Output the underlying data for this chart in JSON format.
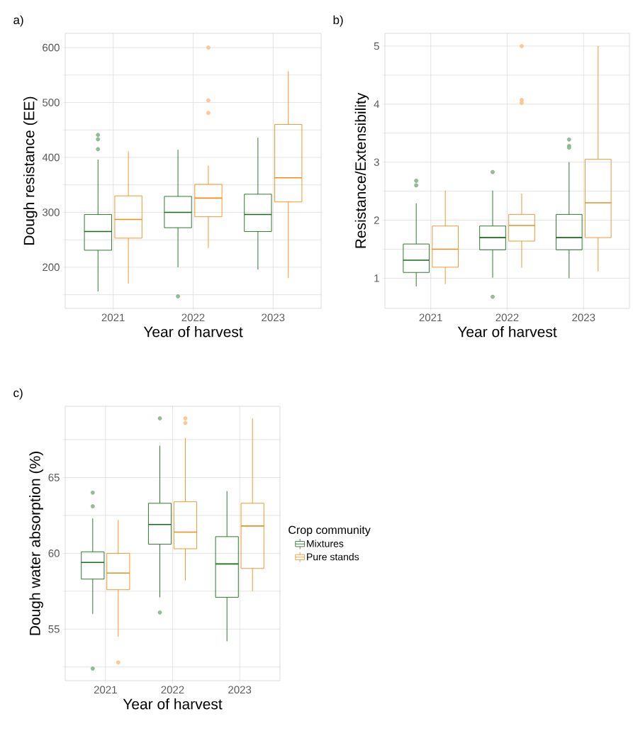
{
  "chart_data": [
    {
      "type": "box",
      "title": "a)",
      "xlabel": "Year of harvest",
      "ylabel": "Dough resistance (EE)",
      "categories": [
        "2021",
        "2022",
        "2023"
      ],
      "ylim": [
        125,
        626
      ],
      "yticks": [
        {
          "value": 150,
          "label": null
        },
        200,
        {
          "value": 250,
          "label": null
        },
        300,
        {
          "value": 350,
          "label": null
        },
        400,
        {
          "value": 450,
          "label": null
        },
        500,
        {
          "value": 550,
          "label": null
        },
        600
      ],
      "grid": true,
      "series": [
        {
          "color": "#176b1b",
          "boxes": [
            {
              "low": 156,
              "q1": 231,
              "median": 265,
              "q3": 296,
              "high": 396,
              "outliers": [
                441,
                433,
                415
              ]
            },
            {
              "low": 200,
              "q1": 272,
              "median": 300,
              "q3": 329,
              "high": 414,
              "outliers": [
                147
              ]
            },
            {
              "low": 196,
              "q1": 265,
              "median": 296,
              "q3": 333,
              "high": 436
            }
          ]
        },
        {
          "color": "#f08c1a",
          "boxes": [
            {
              "low": 170,
              "q1": 253,
              "median": 287,
              "q3": 330,
              "high": 411
            },
            {
              "low": 235,
              "q1": 292,
              "median": 326,
              "q3": 351,
              "high": 385,
              "outliers": [
                600,
                504,
                481
              ]
            },
            {
              "low": 180,
              "q1": 319,
              "median": 363,
              "q3": 460,
              "high": 557
            }
          ]
        }
      ]
    },
    {
      "type": "box",
      "title": "b)",
      "xlabel": "Year of harvest",
      "ylabel": "Resistance/Extensibility",
      "categories": [
        "2021",
        "2022",
        "2023"
      ],
      "ylim": [
        0.48,
        5.22
      ],
      "yticks": [
        1,
        {
          "value": 1.5,
          "label": null
        },
        2,
        {
          "value": 2.5,
          "label": null
        },
        3,
        {
          "value": 3.5,
          "label": null
        },
        4,
        {
          "value": 4.5,
          "label": null
        },
        5
      ],
      "grid": true,
      "series": [
        {
          "color": "#176b1b",
          "boxes": [
            {
              "low": 0.86,
              "q1": 1.1,
              "median": 1.31,
              "q3": 1.59,
              "high": 2.29,
              "outliers": [
                2.68,
                2.6
              ]
            },
            {
              "low": 1.01,
              "q1": 1.49,
              "median": 1.7,
              "q3": 1.9,
              "high": 2.51,
              "outliers": [
                0.68,
                2.83
              ]
            },
            {
              "low": 1.0,
              "q1": 1.49,
              "median": 1.7,
              "q3": 2.1,
              "high": 3.0,
              "outliers": [
                3.39,
                3.28,
                3.25
              ]
            }
          ]
        },
        {
          "color": "#f08c1a",
          "boxes": [
            {
              "low": 0.9,
              "q1": 1.19,
              "median": 1.5,
              "q3": 1.9,
              "high": 2.51
            },
            {
              "low": 1.18,
              "q1": 1.64,
              "median": 1.91,
              "q3": 2.1,
              "high": 2.46,
              "outliers": [
                5.0,
                4.07,
                4.02
              ]
            },
            {
              "low": 1.12,
              "q1": 1.7,
              "median": 2.3,
              "q3": 3.05,
              "high": 5.0
            }
          ]
        }
      ]
    },
    {
      "type": "box",
      "title": "c)",
      "xlabel": "Year of harvest",
      "ylabel": "Dough water absorption (%)",
      "categories": [
        "2021",
        "2022",
        "2023"
      ],
      "ylim": [
        51.6,
        69.7
      ],
      "yticks": [
        {
          "value": 52.5,
          "label": null
        },
        55,
        {
          "value": 57.5,
          "label": null
        },
        60,
        {
          "value": 62.5,
          "label": null
        },
        65,
        {
          "value": 67.5,
          "label": null
        }
      ],
      "grid": true,
      "legend": "right",
      "legend_title": "Crop community",
      "series": [
        {
          "name": "Mixtures",
          "color": "#176b1b",
          "boxes": [
            {
              "low": 56.0,
              "q1": 58.3,
              "median": 59.4,
              "q3": 60.1,
              "high": 62.3,
              "outliers": [
                64.0,
                63.1,
                52.4
              ]
            },
            {
              "low": 57.1,
              "q1": 60.6,
              "median": 61.9,
              "q3": 63.3,
              "high": 67.1,
              "outliers": [
                68.9,
                56.1
              ]
            },
            {
              "low": 54.2,
              "q1": 57.1,
              "median": 59.3,
              "q3": 61.1,
              "high": 64.1
            }
          ]
        },
        {
          "name": "Pure stands",
          "color": "#f08c1a",
          "boxes": [
            {
              "low": 54.5,
              "q1": 57.6,
              "median": 58.7,
              "q3": 60.0,
              "high": 62.2,
              "outliers": [
                52.8
              ]
            },
            {
              "low": 58.2,
              "q1": 60.3,
              "median": 61.4,
              "q3": 63.4,
              "high": 67.6,
              "outliers": [
                68.9,
                68.6
              ]
            },
            {
              "low": 57.5,
              "q1": 59.0,
              "median": 61.8,
              "q3": 63.3,
              "high": 68.9
            }
          ]
        }
      ]
    }
  ]
}
